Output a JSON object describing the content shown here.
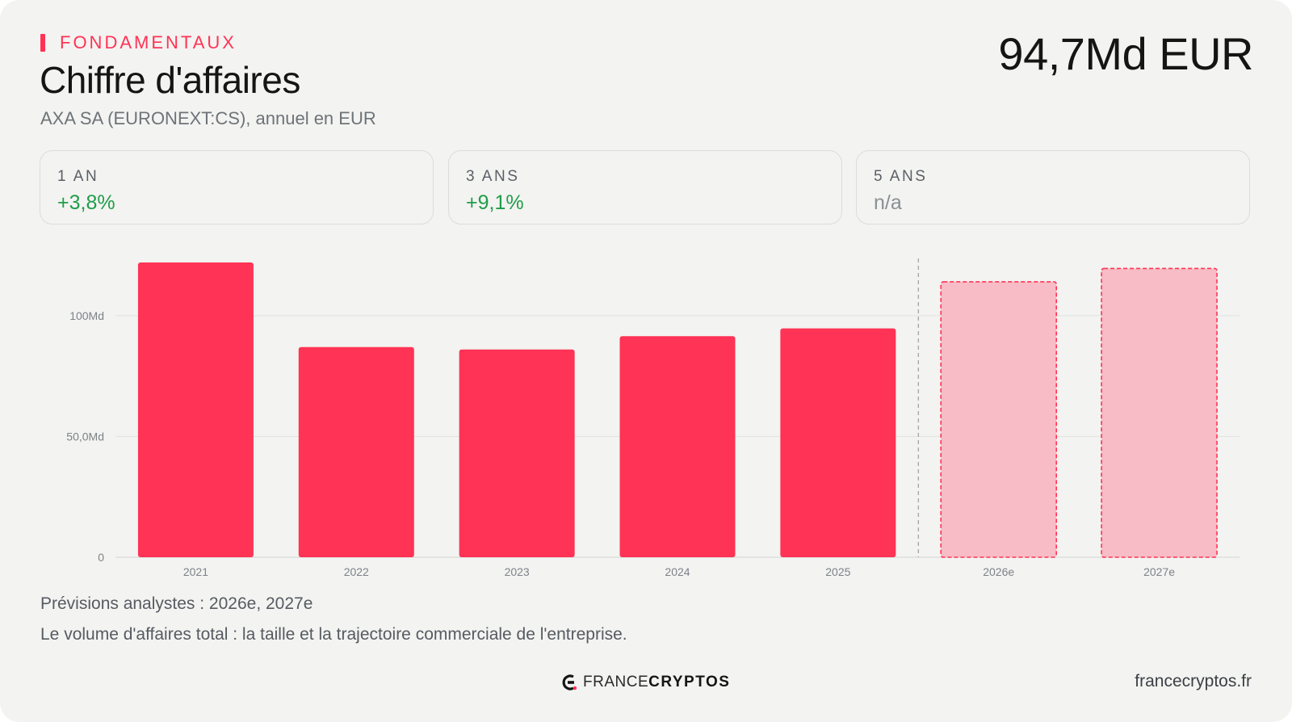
{
  "colors": {
    "accent": "#ff3355",
    "forecast_fill": "#f7bcc6",
    "positive": "#1f9d49",
    "muted": "#8a8f94"
  },
  "header": {
    "eyebrow": "FONDAMENTAUX",
    "title": "Chiffre d'affaires",
    "subtitle": "AXA SA (EURONEXT:CS), annuel en EUR",
    "headline_value": "94,7Md EUR"
  },
  "stats": [
    {
      "label": "1 AN",
      "value": "+3,8%",
      "tone": "positive"
    },
    {
      "label": "3 ANS",
      "value": "+9,1%",
      "tone": "positive"
    },
    {
      "label": "5 ANS",
      "value": "n/a",
      "tone": "muted"
    }
  ],
  "chart_data": {
    "type": "bar",
    "categories": [
      "2021",
      "2022",
      "2023",
      "2024",
      "2025",
      "2026e",
      "2027e"
    ],
    "values": [
      122,
      87,
      86,
      91.5,
      94.7,
      114,
      119.5
    ],
    "forecast": [
      false,
      false,
      false,
      false,
      false,
      true,
      true
    ],
    "yticks": [
      {
        "value": 0,
        "label": "0"
      },
      {
        "value": 50,
        "label": "50,0Md"
      },
      {
        "value": 100,
        "label": "100Md"
      }
    ],
    "ylim": [
      0,
      122
    ],
    "grid": true
  },
  "footer": {
    "note_forecasts": "Prévisions analystes : 2026e, 2027e",
    "note_description": "Le volume d'affaires total : la taille et la trajectoire commerciale de l'entreprise.",
    "brand_light": "FRANCE",
    "brand_bold": "CRYPTOS",
    "domain": "francecryptos.fr"
  }
}
